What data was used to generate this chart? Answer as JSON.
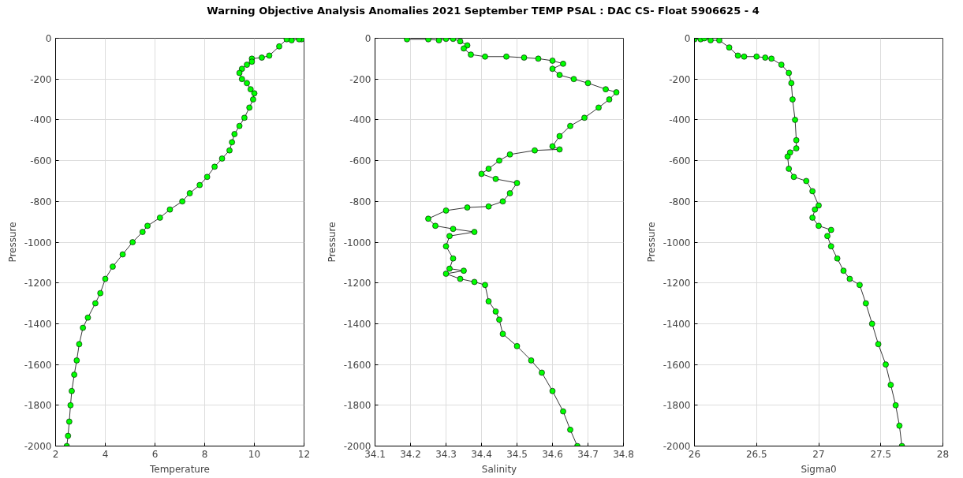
{
  "chart_data": [
    {
      "type": "line",
      "title": "Warning Objective Analysis Anomalies 2021 September TEMP PSAL :  DAC CS- Float 5906625 - 4",
      "xlabel": "Temperature",
      "ylabel": "Pressure",
      "marker": "circle",
      "grid": true,
      "xlim": [
        2,
        12
      ],
      "xticks": [
        2,
        4,
        6,
        8,
        10,
        12
      ],
      "ylim": [
        -2000,
        0
      ],
      "yticks": [
        -2000,
        -1800,
        -1600,
        -1400,
        -1200,
        -1000,
        -800,
        -600,
        -400,
        -200,
        0
      ],
      "series": [
        {
          "color": "#00ff00",
          "x": [
            11.9,
            11.8,
            11.5,
            11.3,
            11.0,
            10.6,
            10.3,
            9.9,
            9.9,
            9.7,
            9.5,
            9.4,
            9.5,
            9.7,
            9.85,
            10.0,
            9.95,
            9.8,
            9.6,
            9.4,
            9.2,
            9.1,
            9.0,
            8.7,
            8.4,
            8.1,
            7.8,
            7.4,
            7.1,
            6.6,
            6.2,
            5.7,
            5.5,
            5.1,
            4.7,
            4.3,
            4.0,
            3.8,
            3.6,
            3.3,
            3.1,
            2.95,
            2.85,
            2.75,
            2.65,
            2.6,
            2.55,
            2.5,
            2.45
          ],
          "values": [
            -5,
            -5,
            -10,
            -5,
            -40,
            -85,
            -95,
            -100,
            -115,
            -130,
            -150,
            -170,
            -200,
            -220,
            -250,
            -270,
            -300,
            -340,
            -390,
            -430,
            -470,
            -510,
            -550,
            -590,
            -630,
            -680,
            -720,
            -760,
            -800,
            -840,
            -880,
            -920,
            -950,
            -1000,
            -1060,
            -1120,
            -1180,
            -1250,
            -1300,
            -1370,
            -1420,
            -1500,
            -1580,
            -1650,
            -1730,
            -1800,
            -1880,
            -1950,
            -2000
          ]
        }
      ]
    },
    {
      "type": "line",
      "xlabel": "Salinity",
      "ylabel": "Pressure",
      "marker": "circle",
      "grid": true,
      "xlim": [
        34.1,
        34.8
      ],
      "xticks": [
        34.1,
        34.2,
        34.3,
        34.4,
        34.5,
        34.6,
        34.7,
        34.8
      ],
      "ylim": [
        -2000,
        0
      ],
      "yticks": [
        -2000,
        -1800,
        -1600,
        -1400,
        -1200,
        -1000,
        -800,
        -600,
        -400,
        -200,
        0
      ],
      "series": [
        {
          "color": "#00ff00",
          "x": [
            34.19,
            34.25,
            34.28,
            34.3,
            34.32,
            34.34,
            34.36,
            34.35,
            34.37,
            34.41,
            34.47,
            34.52,
            34.56,
            34.6,
            34.63,
            34.6,
            34.62,
            34.66,
            34.7,
            34.75,
            34.78,
            34.76,
            34.73,
            34.69,
            34.65,
            34.62,
            34.6,
            34.62,
            34.55,
            34.48,
            34.45,
            34.42,
            34.4,
            34.44,
            34.5,
            34.48,
            34.46,
            34.42,
            34.36,
            34.3,
            34.25,
            34.27,
            34.32,
            34.38,
            34.31,
            34.3,
            34.32,
            34.31,
            34.35,
            34.3,
            34.34,
            34.38,
            34.41,
            34.42,
            34.44,
            34.45,
            34.46,
            34.5,
            34.54,
            34.57,
            34.6,
            34.63,
            34.65,
            34.67
          ],
          "values": [
            -5,
            -5,
            -10,
            -3,
            -3,
            -15,
            -35,
            -50,
            -80,
            -90,
            -90,
            -95,
            -100,
            -110,
            -125,
            -150,
            -180,
            -200,
            -220,
            -250,
            -265,
            -300,
            -340,
            -390,
            -430,
            -480,
            -530,
            -545,
            -550,
            -570,
            -600,
            -640,
            -665,
            -690,
            -710,
            -760,
            -800,
            -825,
            -830,
            -845,
            -885,
            -920,
            -935,
            -950,
            -970,
            -1020,
            -1080,
            -1130,
            -1140,
            -1155,
            -1180,
            -1195,
            -1210,
            -1290,
            -1340,
            -1380,
            -1450,
            -1510,
            -1580,
            -1640,
            -1730,
            -1830,
            -1920,
            -2000
          ]
        }
      ]
    },
    {
      "type": "line",
      "xlabel": "Sigma0",
      "ylabel": "Pressure",
      "marker": "circle",
      "grid": true,
      "xlim": [
        26,
        28
      ],
      "xticks": [
        26,
        26.5,
        27,
        27.5,
        28
      ],
      "ylim": [
        -2000,
        0
      ],
      "yticks": [
        -2000,
        -1800,
        -1600,
        -1400,
        -1200,
        -1000,
        -800,
        -600,
        -400,
        -200,
        0
      ],
      "series": [
        {
          "color": "#00ff00",
          "x": [
            26.0,
            26.05,
            26.08,
            26.13,
            26.2,
            26.28,
            26.35,
            26.4,
            26.5,
            26.57,
            26.62,
            26.7,
            26.76,
            26.78,
            26.79,
            26.81,
            26.82,
            26.82,
            26.77,
            26.75,
            26.76,
            26.8,
            26.9,
            26.95,
            27.0,
            26.97,
            26.95,
            27.0,
            27.1,
            27.07,
            27.1,
            27.15,
            27.2,
            27.25,
            27.33,
            27.38,
            27.43,
            27.48,
            27.54,
            27.58,
            27.62,
            27.65,
            27.67
          ],
          "values": [
            -5,
            -5,
            0,
            -10,
            -10,
            -45,
            -85,
            -90,
            -90,
            -95,
            -100,
            -130,
            -170,
            -220,
            -300,
            -400,
            -500,
            -540,
            -560,
            -580,
            -640,
            -680,
            -700,
            -750,
            -820,
            -840,
            -880,
            -920,
            -940,
            -970,
            -1020,
            -1080,
            -1140,
            -1180,
            -1210,
            -1300,
            -1400,
            -1500,
            -1600,
            -1700,
            -1800,
            -1900,
            -2000
          ]
        }
      ]
    }
  ]
}
